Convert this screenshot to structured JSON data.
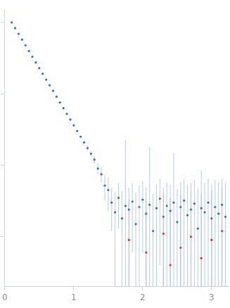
{
  "chart_data": {
    "type": "scatter",
    "log": "y",
    "grid": false,
    "tick_labels": "x",
    "xlim": [
      0,
      3.25
    ],
    "xticks": [
      0,
      1,
      2,
      3
    ],
    "ylim": [
      0.0002,
      1.5
    ],
    "yticks": [
      0.001,
      0.01,
      0.1,
      1
    ],
    "series": [
      {
        "color": "#3a6bbf",
        "marker": "circle",
        "x": [
          0.1,
          0.15,
          0.2,
          0.25,
          0.3,
          0.35,
          0.4,
          0.45,
          0.5,
          0.55,
          0.6,
          0.65,
          0.7,
          0.75,
          0.8,
          0.85,
          0.9,
          0.95,
          1.0,
          1.05,
          1.1,
          1.15,
          1.2,
          1.25,
          1.3,
          1.35,
          1.4,
          1.45,
          1.5,
          1.55,
          1.6,
          1.65,
          1.7,
          1.75,
          1.8,
          1.85,
          1.9,
          1.95,
          2.0,
          2.05,
          2.1,
          2.15,
          2.2,
          2.25,
          2.3,
          2.35,
          2.4,
          2.45,
          2.5,
          2.55,
          2.6,
          2.65,
          2.7,
          2.75,
          2.8,
          2.85,
          2.9,
          2.95,
          3.0,
          3.05,
          3.1,
          3.15,
          3.2
        ],
        "values": [
          1.0,
          0.832,
          0.692,
          0.575,
          0.479,
          0.398,
          0.331,
          0.275,
          0.229,
          0.191,
          0.158,
          0.132,
          0.11,
          0.0912,
          0.0759,
          0.0631,
          0.0525,
          0.0437,
          0.0363,
          0.0302,
          0.0251,
          0.0209,
          0.0174,
          0.0145,
          0.012,
          0.009,
          0.0075,
          0.0052,
          0.0045,
          0.003,
          0.0022,
          0.0035,
          0.0018,
          0.0027,
          0.0024,
          0.0031,
          0.0015,
          0.0026,
          0.0033,
          0.0021,
          0.0028,
          0.0012,
          0.0025,
          0.0034,
          0.0019,
          0.0027,
          0.0023,
          0.003,
          0.0016,
          0.0026,
          0.0032,
          0.002,
          0.0024,
          0.0029,
          0.0013,
          0.0025,
          0.0022,
          0.003,
          0.0018,
          0.0026,
          0.0021,
          0.0028,
          0.0019
        ],
        "error": [
          0.002,
          0.002,
          0.002,
          0.002,
          0.002,
          0.002,
          0.002,
          0.002,
          0.002,
          0.002,
          0.002,
          0.002,
          0.002,
          0.002,
          0.002,
          0.002,
          0.002,
          0.002,
          0.002,
          0.0006,
          0.0008,
          0.001,
          0.0012,
          0.0014,
          0.0015,
          0.0016,
          0.0018,
          0.002,
          0.0022,
          0.0018,
          0.002,
          0.0022,
          0.0025,
          0.02,
          0.0024,
          0.0025,
          0.0026,
          0.0026,
          0.0027,
          0.0028,
          0.015,
          0.0028,
          0.0029,
          0.003,
          0.003,
          0.003,
          0.0031,
          0.012,
          0.0031,
          0.0032,
          0.0032,
          0.0033,
          0.0033,
          0.0034,
          0.0034,
          0.006,
          0.0035,
          0.0035,
          0.0036,
          0.0036,
          0.0037,
          0.0037,
          0.0038
        ]
      },
      {
        "color": "#e0302c",
        "marker": "circle",
        "x": [
          1.8,
          2.05,
          2.3,
          2.4,
          2.55,
          2.7,
          2.85,
          3.0,
          3.15
        ],
        "values": [
          0.0009,
          0.0006,
          0.0011,
          0.0004,
          0.0007,
          0.001,
          0.0005,
          0.0009,
          0.0012
        ],
        "error": [
          0.0024,
          0.0028,
          0.003,
          0.0031,
          0.0032,
          0.0033,
          0.0034,
          0.0036,
          0.0037
        ]
      }
    ]
  }
}
